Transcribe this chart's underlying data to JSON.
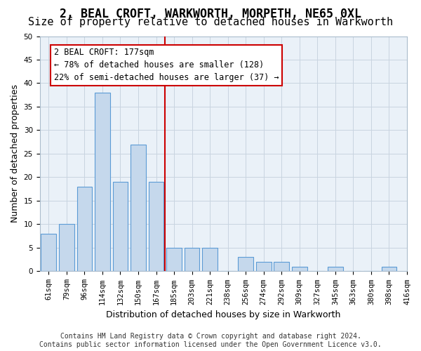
{
  "title": "2, BEAL CROFT, WARKWORTH, MORPETH, NE65 0XL",
  "subtitle": "Size of property relative to detached houses in Warkworth",
  "xlabel": "Distribution of detached houses by size in Warkworth",
  "ylabel": "Number of detached properties",
  "bin_labels": [
    "61sqm",
    "79sqm",
    "96sqm",
    "114sqm",
    "132sqm",
    "150sqm",
    "167sqm",
    "185sqm",
    "203sqm",
    "221sqm",
    "238sqm",
    "256sqm",
    "274sqm",
    "292sqm",
    "309sqm",
    "327sqm",
    "345sqm",
    "363sqm",
    "380sqm",
    "398sqm",
    "416sqm"
  ],
  "values": [
    8,
    10,
    18,
    38,
    19,
    27,
    19,
    5,
    5,
    5,
    0,
    3,
    2,
    2,
    1,
    0,
    1,
    0,
    0,
    1
  ],
  "bar_color": "#c5d8ec",
  "bar_edge_color": "#5b9bd5",
  "vline_x": 6.5,
  "property_label": "2 BEAL CROFT: 177sqm",
  "annotation_line1": "← 78% of detached houses are smaller (128)",
  "annotation_line2": "22% of semi-detached houses are larger (37) →",
  "annotation_box_color": "#ffffff",
  "annotation_box_edge_color": "#cc0000",
  "vline_color": "#cc0000",
  "ylim": [
    0,
    50
  ],
  "yticks": [
    0,
    5,
    10,
    15,
    20,
    25,
    30,
    35,
    40,
    45,
    50
  ],
  "grid_color": "#c8d4e0",
  "footer_line1": "Contains HM Land Registry data © Crown copyright and database right 2024.",
  "footer_line2": "Contains public sector information licensed under the Open Government Licence v3.0.",
  "title_fontsize": 12,
  "subtitle_fontsize": 11,
  "axis_label_fontsize": 9,
  "tick_fontsize": 7.5,
  "annotation_fontsize": 8.5,
  "footer_fontsize": 7
}
